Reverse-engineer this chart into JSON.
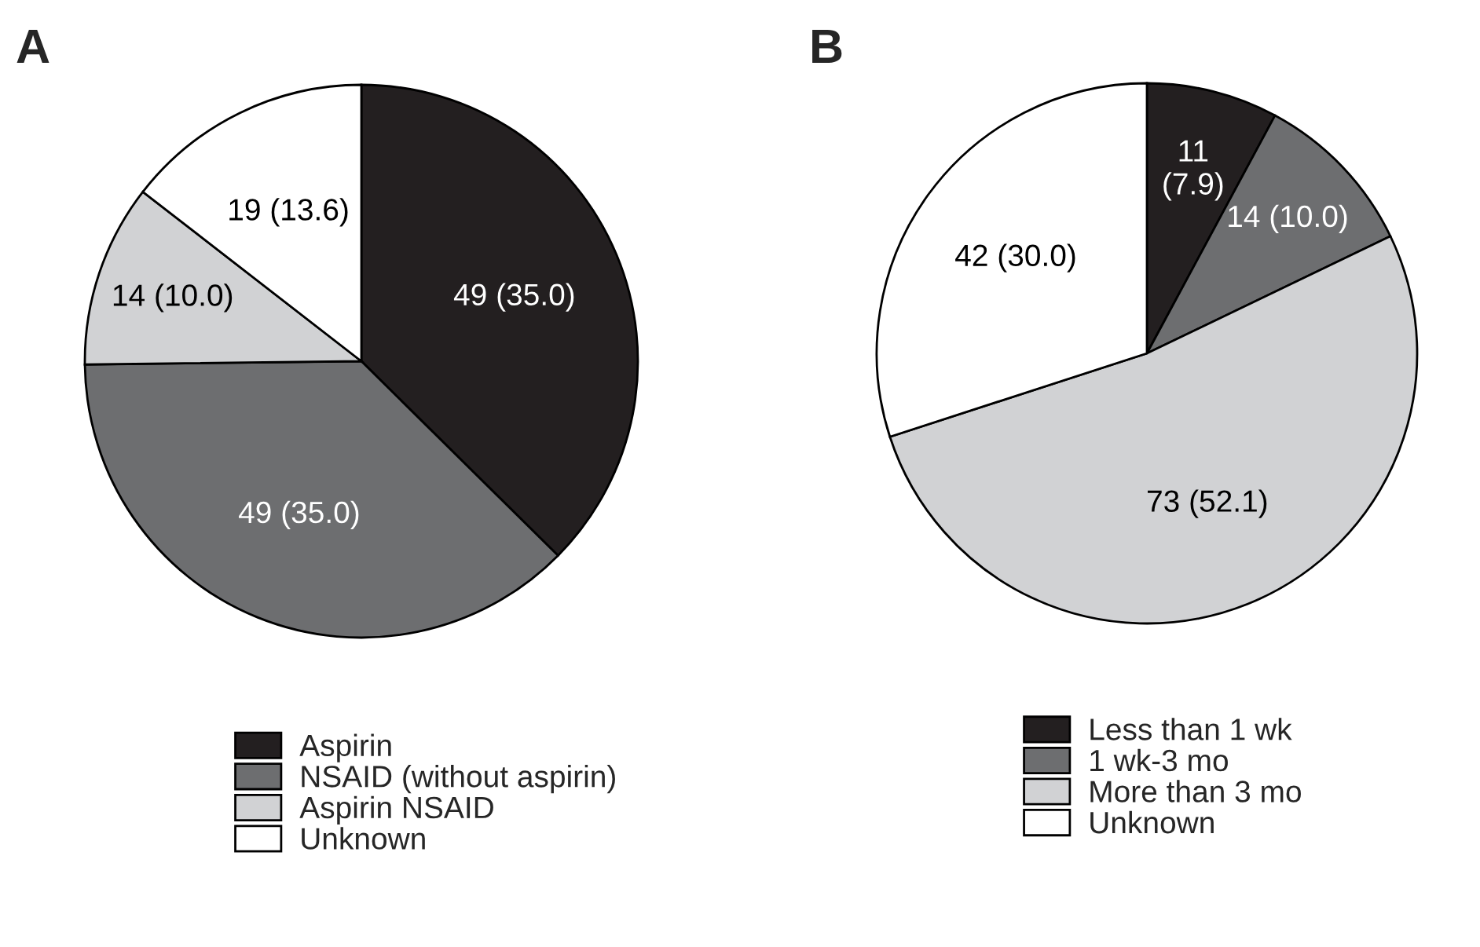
{
  "chart_data": [
    {
      "type": "pie",
      "title": "A",
      "categories": [
        "Aspirin",
        "NSAID (without aspirin)",
        "Aspirin NSAID",
        "Unknown"
      ],
      "values": [
        49,
        49,
        14,
        19
      ],
      "value_labels": [
        "49 (35.0)",
        "49 (35.0)",
        "14 (10.0)",
        "19 (13.6)"
      ],
      "colors": [
        "#231f20",
        "#6d6e70",
        "#d1d2d4",
        "#ffffff"
      ],
      "legend": "bottom"
    },
    {
      "type": "pie",
      "title": "B",
      "categories": [
        "Less than 1 wk",
        "1 wk-3 mo",
        "More than 3 mo",
        "Unknown"
      ],
      "values": [
        11,
        14,
        73,
        42
      ],
      "value_labels": [
        "11 (7.9)",
        "14 (10.0)",
        "73 (52.1)",
        "42 (30.0)"
      ],
      "colors": [
        "#231f20",
        "#6d6e70",
        "#d1d2d4",
        "#ffffff"
      ],
      "legend": "bottom"
    }
  ]
}
